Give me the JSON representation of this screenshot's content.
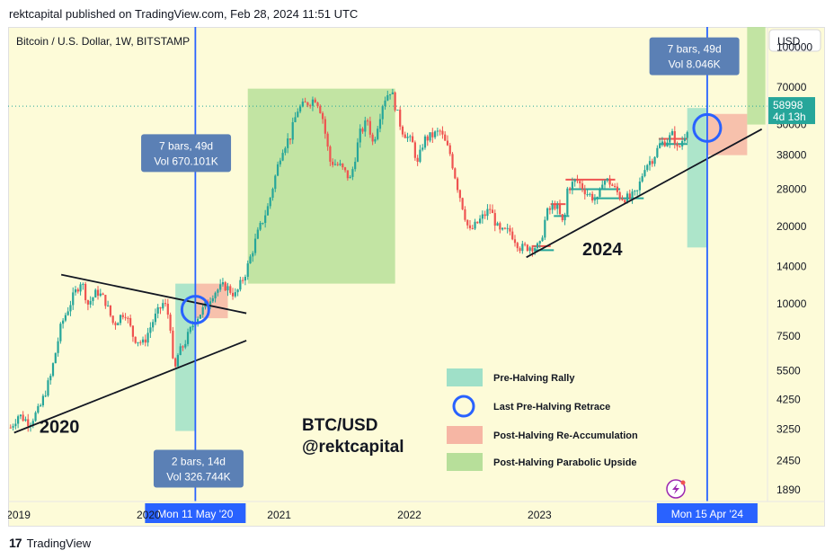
{
  "header": {
    "text": "rektcapital published on TradingView.com, Feb 28, 2024 11:51 UTC"
  },
  "footer": {
    "logo_text": "TradingView"
  },
  "chart_data": {
    "type": "line",
    "title": "Bitcoin / U.S. Dollar, 1W, BITSTAMP",
    "currency": "USD",
    "watermark": [
      "BTC/USD",
      "@rektcapital"
    ],
    "y_scale": "log",
    "ylim": [
      1700,
      120000
    ],
    "xlim": [
      "2018-12-03",
      "2024-10-01"
    ],
    "y_ticks": [
      100000,
      70000,
      50000,
      38000,
      28000,
      20000,
      14000,
      10000,
      7500,
      5500,
      4250,
      3250,
      2450,
      1890
    ],
    "x_ticks": [
      {
        "label": "2019",
        "date": "2019-01-01"
      },
      {
        "label": "2020",
        "date": "2020-01-01"
      },
      {
        "label": "2021",
        "date": "2021-01-01"
      },
      {
        "label": "2022",
        "date": "2022-01-01"
      },
      {
        "label": "2023",
        "date": "2023-01-01"
      }
    ],
    "last_price": {
      "value": 58998,
      "label": "58998",
      "sub": "4d 13h"
    },
    "x_markers": [
      {
        "date": "2020-05-11",
        "label": "Mon 11 May '20"
      },
      {
        "date": "2024-04-15",
        "label": "Mon 15 Apr '24"
      }
    ],
    "series": [
      {
        "x": [
          "2018-12-10",
          "2019-01-01",
          "2019-02-01",
          "2019-03-01",
          "2019-04-01",
          "2019-05-01",
          "2019-06-01",
          "2019-06-26",
          "2019-07-15",
          "2019-08-10",
          "2019-09-01",
          "2019-09-25",
          "2019-10-26",
          "2019-11-20",
          "2019-12-17",
          "2020-01-15",
          "2020-02-13",
          "2020-03-01",
          "2020-03-12",
          "2020-03-20",
          "2020-04-10",
          "2020-05-11",
          "2020-06-01",
          "2020-07-01",
          "2020-08-01",
          "2020-09-01",
          "2020-10-01",
          "2020-11-01",
          "2020-12-01",
          "2021-01-08",
          "2021-02-01",
          "2021-02-21",
          "2021-03-15",
          "2021-04-14",
          "2021-05-01",
          "2021-05-23",
          "2021-06-20",
          "2021-07-20",
          "2021-08-15",
          "2021-09-06",
          "2021-09-21",
          "2021-10-20",
          "2021-11-10",
          "2021-12-10",
          "2022-01-10",
          "2022-01-24",
          "2022-02-10",
          "2022-03-28",
          "2022-04-25",
          "2022-05-15",
          "2022-06-18",
          "2022-07-15",
          "2022-08-15",
          "2022-09-10",
          "2022-10-10",
          "2022-11-09",
          "2022-12-10",
          "2023-01-01",
          "2023-01-20",
          "2023-02-15",
          "2023-03-10",
          "2023-03-20",
          "2023-04-14",
          "2023-05-15",
          "2023-06-15",
          "2023-06-25",
          "2023-07-15",
          "2023-08-17",
          "2023-09-10",
          "2023-10-01",
          "2023-10-23",
          "2023-11-15",
          "2023-12-05",
          "2023-12-25",
          "2024-01-11",
          "2024-01-23",
          "2024-02-10",
          "2024-02-25"
        ],
        "values": [
          3300,
          3700,
          3450,
          3900,
          5200,
          8300,
          10500,
          12400,
          10000,
          11200,
          10300,
          8300,
          9400,
          7400,
          7000,
          8700,
          10200,
          8600,
          5100,
          6200,
          7000,
          8700,
          9500,
          11100,
          11800,
          10800,
          13500,
          18700,
          24000,
          40000,
          45000,
          57000,
          60000,
          63500,
          55000,
          36000,
          34500,
          30500,
          46000,
          52000,
          42000,
          62000,
          68500,
          48000,
          42000,
          35000,
          43500,
          47000,
          38500,
          29000,
          19000,
          21000,
          23500,
          19000,
          19200,
          16500,
          16800,
          16600,
          22500,
          24500,
          20000,
          28000,
          30500,
          27000,
          25000,
          30500,
          30000,
          26000,
          25800,
          27000,
          34500,
          37000,
          42000,
          43500,
          46000,
          39500,
          45000,
          51500
        ]
      }
    ],
    "annotations": [
      {
        "text": "2020",
        "x": "2019-03-01",
        "y": 3150
      },
      {
        "text": "2024",
        "x": "2023-05-01",
        "y": 15500
      },
      {
        "box": "7 bars, 49d",
        "vol": "Vol 670.101K",
        "x": "2020-04-15",
        "y": 39000
      },
      {
        "box": "2 bars, 14d",
        "vol": "Vol 326.744K",
        "x": "2020-05-20",
        "y": 2300
      },
      {
        "box": "7 bars, 49d",
        "vol": "Vol 8.046K",
        "x": "2024-03-10",
        "y": 93000
      }
    ],
    "legend": {
      "position": "bottom-right",
      "items": [
        {
          "label": "Pre-Halving Rally",
          "color": "#9fe0c8"
        },
        {
          "label": "Last Pre-Halving Retrace",
          "color": "#2962ff"
        },
        {
          "label": "Post-Halving Re-Accumulation",
          "color": "#f6b6a4"
        },
        {
          "label": "Post-Halving Parabolic Upside",
          "color": "#b7df9a"
        }
      ]
    },
    "colors": {
      "background": "#fdfbd8",
      "up": "#26a69a",
      "down": "#ef5350",
      "marker_line": "#2962ff",
      "label_box": "#5b80b5",
      "last_price": "#26a69a"
    }
  }
}
